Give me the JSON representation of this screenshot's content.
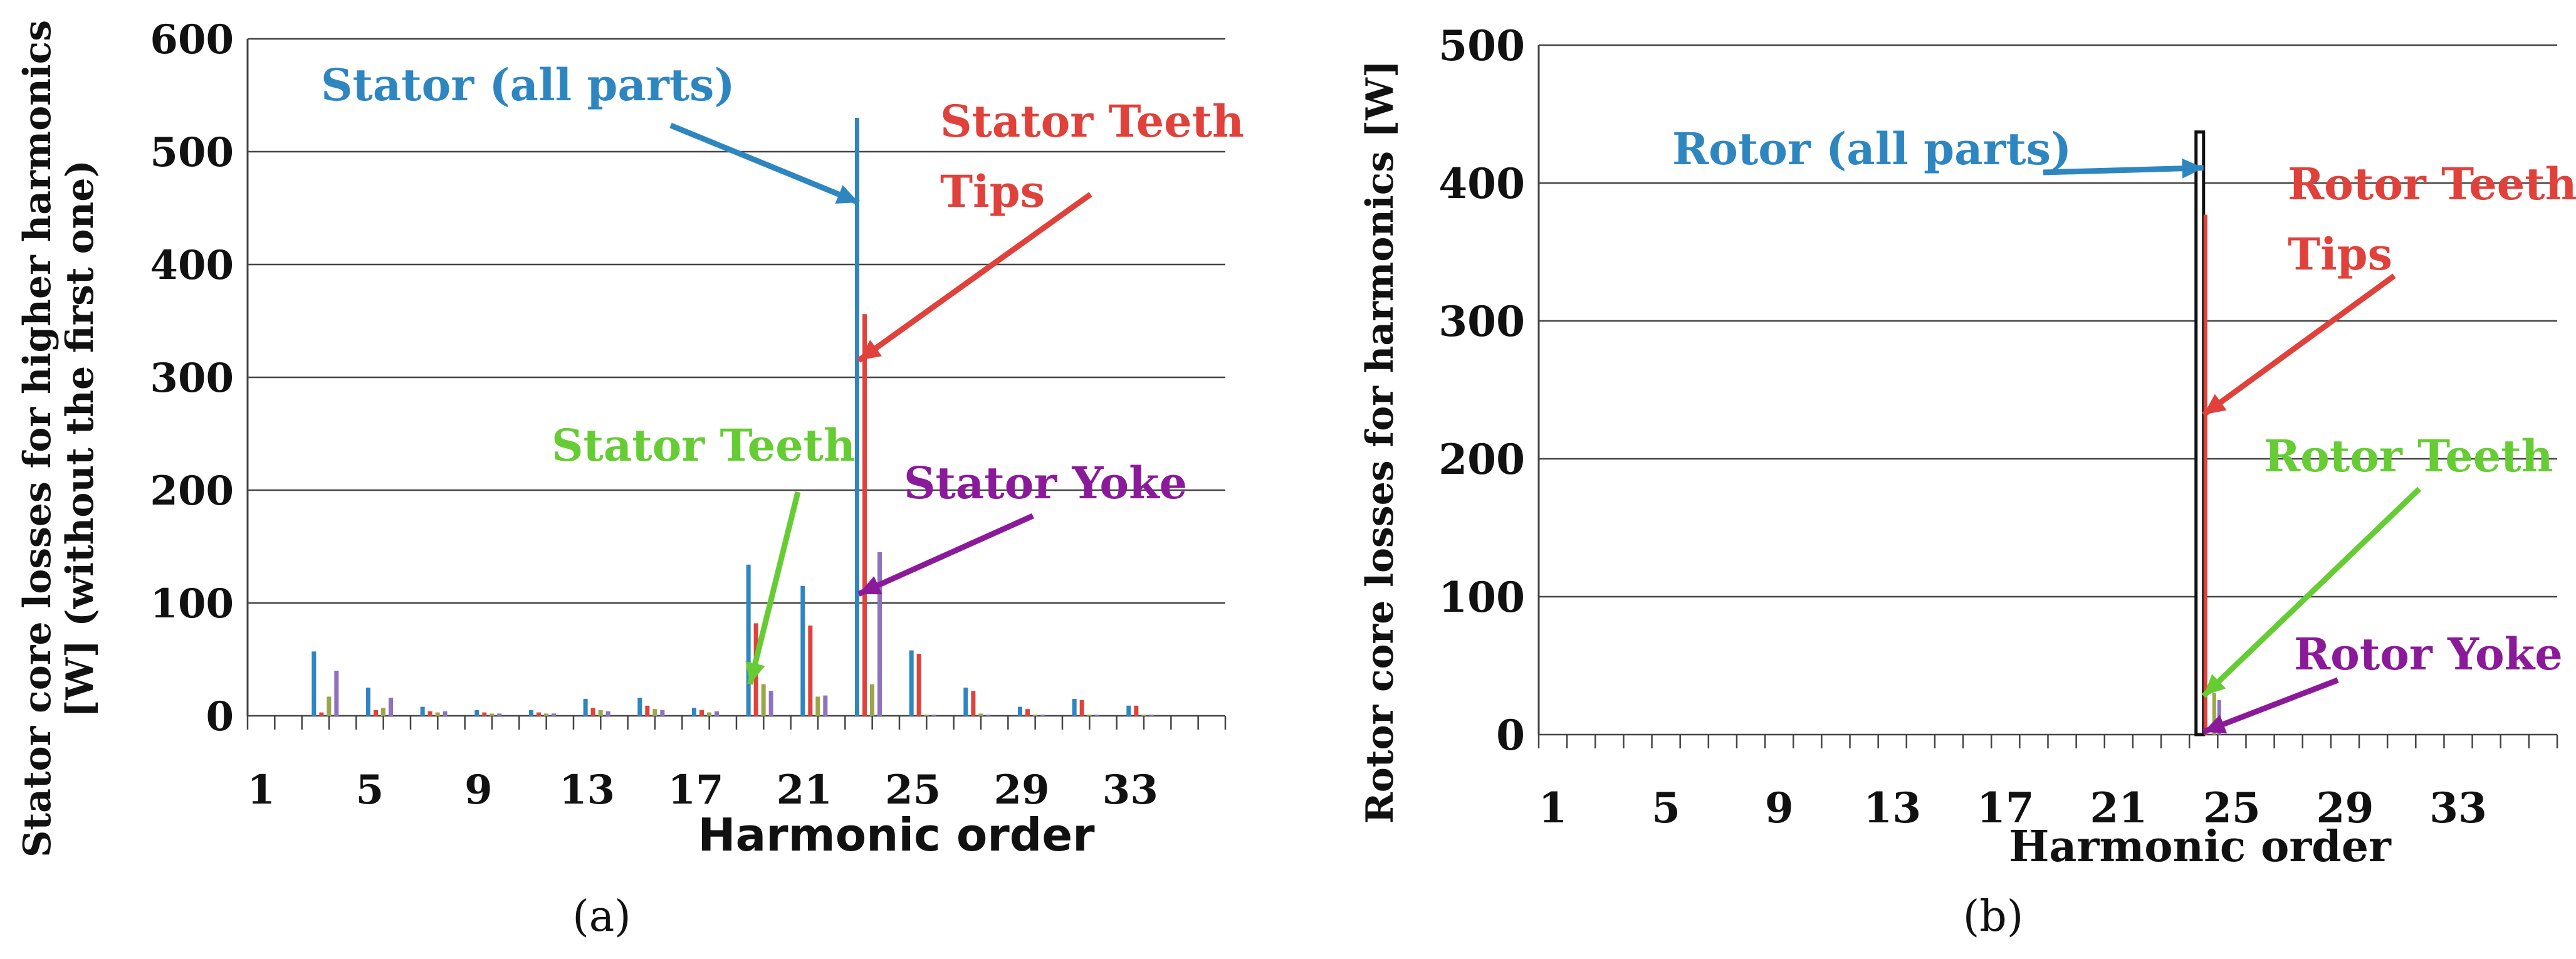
{
  "figure": {
    "panel_labels": [
      "(a)",
      "(b)"
    ]
  },
  "chart_data": [
    {
      "type": "bar",
      "panel_label": "(a)",
      "xlabel": "Harmonic order",
      "ylabel_lines": [
        "Stator core losses for higher harmonics",
        "[W] (without the first one)"
      ],
      "ylim": [
        0,
        600
      ],
      "yticks": [
        0,
        100,
        200,
        300,
        400,
        500,
        600
      ],
      "xlim": [
        0,
        36
      ],
      "xticks": [
        1,
        5,
        9,
        13,
        17,
        21,
        25,
        29,
        33
      ],
      "grid": "horizontal",
      "legend": "none",
      "series": [
        {
          "key": "all",
          "color": "#2e86c1",
          "points": [
            [
              3,
              57
            ],
            [
              5,
              25
            ],
            [
              7,
              8
            ],
            [
              9,
              5
            ],
            [
              11,
              5
            ],
            [
              13,
              15
            ],
            [
              15,
              16
            ],
            [
              17,
              7
            ],
            [
              19,
              134
            ],
            [
              21,
              115
            ],
            [
              23,
              530
            ],
            [
              25,
              58
            ],
            [
              27,
              25
            ],
            [
              29,
              8
            ],
            [
              31,
              15
            ],
            [
              33,
              9
            ]
          ]
        },
        {
          "key": "tips",
          "color": "#e0413a",
          "points": [
            [
              3,
              3
            ],
            [
              5,
              5
            ],
            [
              7,
              4
            ],
            [
              9,
              3
            ],
            [
              11,
              3
            ],
            [
              13,
              7
            ],
            [
              15,
              9
            ],
            [
              17,
              5
            ],
            [
              19,
              82
            ],
            [
              21,
              80
            ],
            [
              23,
              356
            ],
            [
              25,
              55
            ],
            [
              27,
              22
            ],
            [
              29,
              6
            ],
            [
              31,
              14
            ],
            [
              33,
              9
            ]
          ]
        },
        {
          "key": "teeth",
          "color": "#9aa64a",
          "points": [
            [
              3,
              17
            ],
            [
              5,
              7
            ],
            [
              7,
              3
            ],
            [
              9,
              2
            ],
            [
              11,
              2
            ],
            [
              13,
              5
            ],
            [
              15,
              6
            ],
            [
              17,
              3
            ],
            [
              19,
              28
            ],
            [
              21,
              17
            ],
            [
              23,
              28
            ],
            [
              25,
              1
            ],
            [
              27,
              2
            ],
            [
              29,
              1
            ],
            [
              31,
              1
            ],
            [
              33,
              1
            ]
          ]
        },
        {
          "key": "yoke",
          "color": "#8e72bd",
          "points": [
            [
              3,
              40
            ],
            [
              5,
              16
            ],
            [
              7,
              4
            ],
            [
              9,
              2
            ],
            [
              11,
              2
            ],
            [
              13,
              4
            ],
            [
              15,
              5
            ],
            [
              17,
              4
            ],
            [
              19,
              22
            ],
            [
              21,
              18
            ],
            [
              23,
              145
            ],
            [
              25,
              1
            ],
            [
              27,
              1
            ],
            [
              29,
              1
            ],
            [
              31,
              1
            ],
            [
              33,
              1
            ]
          ]
        }
      ],
      "annotations": [
        {
          "key": "all",
          "lines": [
            "Stator (all parts)"
          ],
          "color": "#2e86c1",
          "points_to": [
            23,
            455
          ]
        },
        {
          "key": "tips",
          "lines": [
            "Stator Teeth",
            "Tips"
          ],
          "color": "#e0413a",
          "points_to": [
            23,
            315
          ]
        },
        {
          "key": "teeth",
          "lines": [
            "Stator Teeth"
          ],
          "color": "#66cc33",
          "points_to": [
            19,
            28
          ]
        },
        {
          "key": "yoke",
          "lines": [
            "Stator Yoke"
          ],
          "color": "#8b1a9a",
          "points_to": [
            23,
            108
          ]
        }
      ]
    },
    {
      "type": "bar",
      "panel_label": "(b)",
      "xlabel": "Harmonic order",
      "ylabel_lines": [
        "Rotor core losses for  harmonics [W]"
      ],
      "ylim": [
        0,
        500
      ],
      "yticks": [
        0,
        100,
        200,
        300,
        400,
        500
      ],
      "xlim": [
        0,
        36
      ],
      "xticks": [
        1,
        5,
        9,
        13,
        17,
        21,
        25,
        29,
        33
      ],
      "grid": "horizontal",
      "legend": "none",
      "series": [
        {
          "key": "all",
          "color": "#111111",
          "points": [
            [
              24,
              437
            ]
          ]
        },
        {
          "key": "tips",
          "color": "#e0413a",
          "points": [
            [
              24,
              377
            ]
          ]
        },
        {
          "key": "teeth",
          "color": "#9aa64a",
          "points": [
            [
              24,
              30
            ]
          ]
        },
        {
          "key": "yoke",
          "color": "#8e72bd",
          "points": [
            [
              24,
              25
            ]
          ]
        }
      ],
      "annotations": [
        {
          "key": "all",
          "lines": [
            "Rotor (all parts)"
          ],
          "color": "#2e86c1",
          "points_to": [
            24,
            411
          ]
        },
        {
          "key": "tips",
          "lines": [
            "Rotor Teeth",
            "Tips"
          ],
          "color": "#e0413a",
          "points_to": [
            24,
            232
          ]
        },
        {
          "key": "teeth",
          "lines": [
            "Rotor Teeth"
          ],
          "color": "#66cc33",
          "points_to": [
            24,
            28
          ]
        },
        {
          "key": "yoke",
          "lines": [
            "Rotor Yoke"
          ],
          "color": "#8b1a9a",
          "points_to": [
            24,
            2
          ]
        }
      ]
    }
  ]
}
